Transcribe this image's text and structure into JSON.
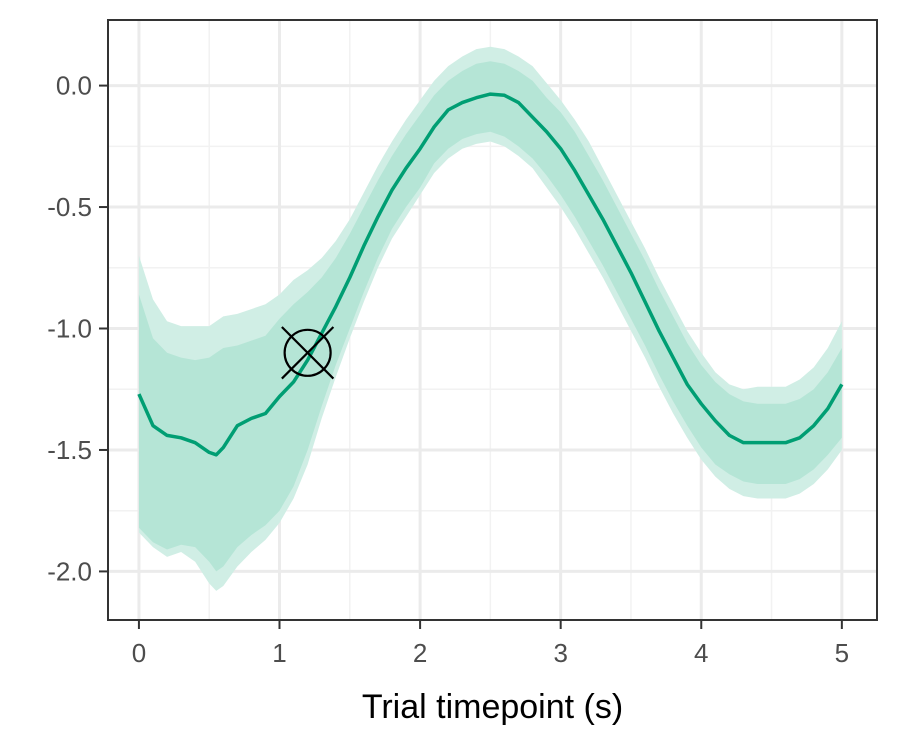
{
  "chart_data": {
    "type": "line",
    "title": "",
    "xlabel": "Trial timepoint (s)",
    "ylabel": "",
    "xlim": [
      -0.22,
      5.25
    ],
    "ylim": [
      -2.2,
      0.27
    ],
    "x_ticks": [
      0,
      1,
      2,
      3,
      4,
      5
    ],
    "x_tick_labels": [
      "0",
      "1",
      "2",
      "3",
      "4",
      "5"
    ],
    "y_ticks": [
      0.0,
      -0.5,
      -1.0,
      -1.5,
      -2.0
    ],
    "y_tick_labels": [
      "0.0",
      "-0.5",
      "-1.0",
      "-1.5",
      "-2.0"
    ],
    "grid": true,
    "legend": "none",
    "colors": {
      "line": "#009E73",
      "band_outer": "#D0EEE5",
      "band_inner": "#B5E5D6",
      "marker": "#000000",
      "panel_border": "#333333"
    },
    "series": [
      {
        "x": [
          0,
          0.1,
          0.2,
          0.3,
          0.4,
          0.5,
          0.55,
          0.6,
          0.7,
          0.8,
          0.9,
          1.0,
          1.1,
          1.2,
          1.3,
          1.4,
          1.5,
          1.6,
          1.7,
          1.8,
          1.9,
          2.0,
          2.1,
          2.2,
          2.3,
          2.4,
          2.5,
          2.6,
          2.7,
          2.8,
          2.9,
          3.0,
          3.1,
          3.2,
          3.3,
          3.4,
          3.5,
          3.6,
          3.7,
          3.8,
          3.9,
          4.0,
          4.1,
          4.2,
          4.3,
          4.4,
          4.5,
          4.6,
          4.7,
          4.8,
          4.9,
          5.0
        ],
        "y": [
          -1.27,
          -1.4,
          -1.44,
          -1.45,
          -1.47,
          -1.51,
          -1.52,
          -1.49,
          -1.4,
          -1.37,
          -1.35,
          -1.28,
          -1.22,
          -1.13,
          -1.02,
          -0.91,
          -0.79,
          -0.66,
          -0.54,
          -0.43,
          -0.34,
          -0.26,
          -0.17,
          -0.1,
          -0.07,
          -0.05,
          -0.035,
          -0.04,
          -0.07,
          -0.13,
          -0.19,
          -0.26,
          -0.35,
          -0.45,
          -0.55,
          -0.66,
          -0.77,
          -0.89,
          -1.01,
          -1.12,
          -1.23,
          -1.31,
          -1.38,
          -1.44,
          -1.47,
          -1.47,
          -1.47,
          -1.47,
          -1.45,
          -1.4,
          -1.33,
          -1.23
        ],
        "inner_lower": [
          -1.82,
          -1.88,
          -1.91,
          -1.89,
          -1.9,
          -1.96,
          -2.0,
          -1.98,
          -1.9,
          -1.85,
          -1.81,
          -1.75,
          -1.65,
          -1.5,
          -1.32,
          -1.15,
          -1.0,
          -0.85,
          -0.71,
          -0.59,
          -0.5,
          -0.42,
          -0.32,
          -0.26,
          -0.22,
          -0.2,
          -0.19,
          -0.21,
          -0.25,
          -0.3,
          -0.37,
          -0.45,
          -0.54,
          -0.64,
          -0.74,
          -0.85,
          -0.96,
          -1.07,
          -1.19,
          -1.3,
          -1.4,
          -1.49,
          -1.56,
          -1.6,
          -1.63,
          -1.64,
          -1.64,
          -1.64,
          -1.62,
          -1.58,
          -1.52,
          -1.45
        ],
        "inner_upper": [
          -0.86,
          -1.04,
          -1.1,
          -1.12,
          -1.13,
          -1.12,
          -1.1,
          -1.08,
          -1.07,
          -1.05,
          -1.03,
          -0.96,
          -0.9,
          -0.85,
          -0.79,
          -0.71,
          -0.61,
          -0.5,
          -0.39,
          -0.29,
          -0.2,
          -0.12,
          -0.04,
          0.02,
          0.06,
          0.09,
          0.1,
          0.09,
          0.06,
          0.02,
          -0.05,
          -0.11,
          -0.19,
          -0.29,
          -0.39,
          -0.5,
          -0.61,
          -0.72,
          -0.84,
          -0.95,
          -1.06,
          -1.15,
          -1.22,
          -1.27,
          -1.3,
          -1.31,
          -1.31,
          -1.31,
          -1.29,
          -1.25,
          -1.18,
          -1.08
        ],
        "outer_lower": [
          -1.84,
          -1.9,
          -1.94,
          -1.92,
          -1.96,
          -2.05,
          -2.08,
          -2.06,
          -1.98,
          -1.92,
          -1.87,
          -1.8,
          -1.7,
          -1.56,
          -1.37,
          -1.2,
          -1.04,
          -0.89,
          -0.75,
          -0.63,
          -0.54,
          -0.45,
          -0.36,
          -0.3,
          -0.26,
          -0.24,
          -0.23,
          -0.25,
          -0.29,
          -0.34,
          -0.42,
          -0.5,
          -0.59,
          -0.69,
          -0.79,
          -0.9,
          -1.01,
          -1.12,
          -1.24,
          -1.35,
          -1.45,
          -1.54,
          -1.61,
          -1.66,
          -1.69,
          -1.7,
          -1.7,
          -1.7,
          -1.68,
          -1.64,
          -1.58,
          -1.5
        ],
        "outer_upper": [
          -0.7,
          -0.88,
          -0.97,
          -0.99,
          -0.99,
          -0.99,
          -0.97,
          -0.95,
          -0.94,
          -0.92,
          -0.9,
          -0.86,
          -0.8,
          -0.76,
          -0.71,
          -0.64,
          -0.55,
          -0.44,
          -0.33,
          -0.23,
          -0.14,
          -0.06,
          0.02,
          0.08,
          0.12,
          0.15,
          0.16,
          0.15,
          0.12,
          0.08,
          0.01,
          -0.06,
          -0.14,
          -0.23,
          -0.34,
          -0.45,
          -0.56,
          -0.67,
          -0.79,
          -0.9,
          -1.01,
          -1.1,
          -1.18,
          -1.23,
          -1.25,
          -1.24,
          -1.24,
          -1.24,
          -1.21,
          -1.16,
          -1.08,
          -0.97
        ]
      }
    ],
    "annotations": [
      {
        "type": "marker",
        "shape": "circle-x",
        "x": 1.2,
        "y": -1.1
      }
    ]
  }
}
